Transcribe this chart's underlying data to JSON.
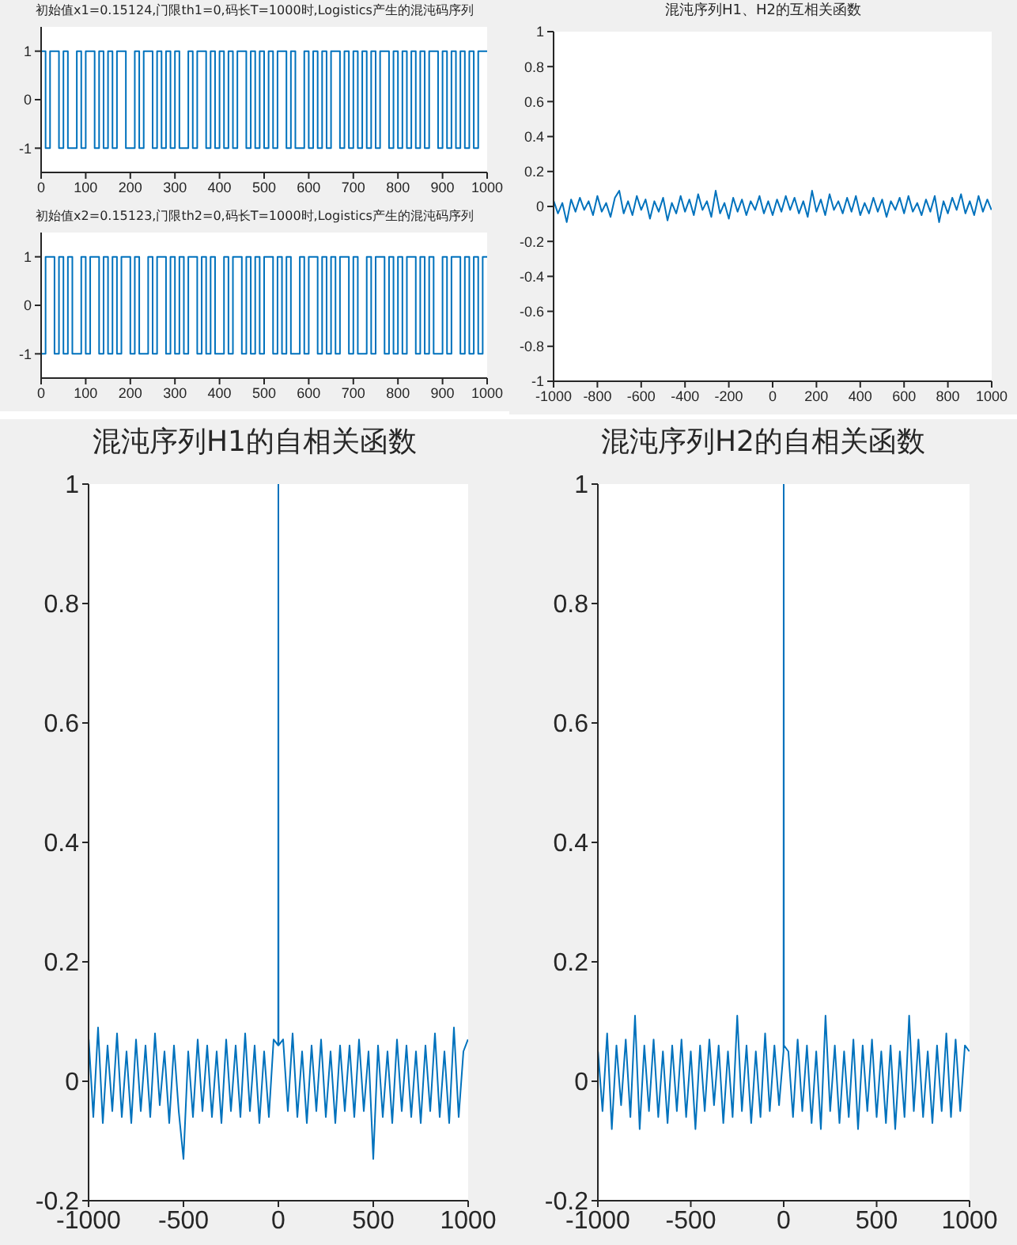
{
  "chart_data": [
    {
      "type": "step",
      "title": "初始值x1=0.15124,门限th1=0,码长T=1000时,Logistics产生的混沌码序列",
      "xlim": [
        0,
        1000
      ],
      "xticks": [
        0,
        100,
        200,
        300,
        400,
        500,
        600,
        700,
        800,
        900,
        1000
      ],
      "ylim": [
        -1.5,
        1.5
      ],
      "yticks": [
        -1,
        0,
        1
      ],
      "series": [
        {
          "color": "#0072bd",
          "x": [
            0,
            10,
            20,
            30,
            40,
            50,
            60,
            70,
            80,
            90,
            100,
            110,
            120,
            130,
            140,
            150,
            160,
            170,
            180,
            190,
            200,
            210,
            220,
            230,
            240,
            250,
            260,
            270,
            280,
            290,
            300,
            310,
            320,
            330,
            340,
            350,
            360,
            370,
            380,
            390,
            400,
            410,
            420,
            430,
            440,
            450,
            460,
            470,
            480,
            490,
            500,
            510,
            520,
            530,
            540,
            550,
            560,
            570,
            580,
            590,
            600,
            610,
            620,
            630,
            640,
            650,
            660,
            670,
            680,
            690,
            700,
            710,
            720,
            730,
            740,
            750,
            760,
            770,
            780,
            790,
            800,
            810,
            820,
            830,
            840,
            850,
            860,
            870,
            880,
            890,
            900,
            910,
            920,
            930,
            940,
            950,
            960,
            970,
            980,
            990,
            1000
          ],
          "values": [
            1,
            -1,
            1,
            1,
            -1,
            1,
            -1,
            -1,
            1,
            -1,
            1,
            1,
            -1,
            1,
            -1,
            1,
            -1,
            1,
            1,
            -1,
            -1,
            1,
            -1,
            1,
            1,
            -1,
            1,
            -1,
            1,
            -1,
            1,
            -1,
            -1,
            1,
            -1,
            1,
            1,
            -1,
            1,
            -1,
            1,
            -1,
            1,
            -1,
            1,
            1,
            -1,
            1,
            -1,
            1,
            -1,
            1,
            -1,
            1,
            1,
            -1,
            1,
            -1,
            -1,
            1,
            -1,
            1,
            -1,
            1,
            -1,
            1,
            1,
            -1,
            1,
            -1,
            1,
            -1,
            1,
            -1,
            1,
            -1,
            1,
            1,
            -1,
            1,
            -1,
            1,
            -1,
            1,
            -1,
            1,
            -1,
            1,
            1,
            -1,
            1,
            -1,
            1,
            -1,
            1,
            -1,
            1,
            -1,
            1,
            1,
            1
          ]
        }
      ]
    },
    {
      "type": "step",
      "title": "初始值x2=0.15123,门限th2=0,码长T=1000时,Logistics产生的混沌码序列",
      "xlim": [
        0,
        1000
      ],
      "xticks": [
        0,
        100,
        200,
        300,
        400,
        500,
        600,
        700,
        800,
        900,
        1000
      ],
      "ylim": [
        -1.5,
        1.5
      ],
      "yticks": [
        -1,
        0,
        1
      ],
      "series": [
        {
          "color": "#0072bd",
          "x": [
            0,
            10,
            20,
            30,
            40,
            50,
            60,
            70,
            80,
            90,
            100,
            110,
            120,
            130,
            140,
            150,
            160,
            170,
            180,
            190,
            200,
            210,
            220,
            230,
            240,
            250,
            260,
            270,
            280,
            290,
            300,
            310,
            320,
            330,
            340,
            350,
            360,
            370,
            380,
            390,
            400,
            410,
            420,
            430,
            440,
            450,
            460,
            470,
            480,
            490,
            500,
            510,
            520,
            530,
            540,
            550,
            560,
            570,
            580,
            590,
            600,
            610,
            620,
            630,
            640,
            650,
            660,
            670,
            680,
            690,
            700,
            710,
            720,
            730,
            740,
            750,
            760,
            770,
            780,
            790,
            800,
            810,
            820,
            830,
            840,
            850,
            860,
            870,
            880,
            890,
            900,
            910,
            920,
            930,
            940,
            950,
            960,
            970,
            980,
            990,
            1000
          ],
          "values": [
            -1,
            1,
            1,
            -1,
            1,
            -1,
            1,
            -1,
            -1,
            1,
            -1,
            1,
            1,
            -1,
            1,
            -1,
            1,
            -1,
            1,
            1,
            -1,
            1,
            -1,
            -1,
            1,
            -1,
            1,
            1,
            -1,
            1,
            -1,
            1,
            -1,
            1,
            1,
            -1,
            1,
            -1,
            1,
            -1,
            -1,
            1,
            -1,
            1,
            1,
            -1,
            1,
            -1,
            1,
            -1,
            1,
            1,
            -1,
            1,
            -1,
            1,
            -1,
            -1,
            1,
            -1,
            1,
            1,
            -1,
            1,
            -1,
            1,
            -1,
            1,
            1,
            -1,
            1,
            -1,
            -1,
            1,
            -1,
            1,
            1,
            -1,
            1,
            -1,
            1,
            -1,
            1,
            1,
            -1,
            1,
            -1,
            1,
            -1,
            -1,
            1,
            -1,
            1,
            1,
            -1,
            1,
            -1,
            1,
            -1,
            1,
            1
          ]
        }
      ]
    },
    {
      "type": "line",
      "title": "混沌序列H1、H2的互相关函数",
      "xlim": [
        -1000,
        1000
      ],
      "xticks": [
        -1000,
        -800,
        -600,
        -400,
        -200,
        0,
        200,
        400,
        600,
        800,
        1000
      ],
      "ylim": [
        -1,
        1
      ],
      "yticks": [
        -1,
        -0.8,
        -0.6,
        -0.4,
        -0.2,
        0,
        0.2,
        0.4,
        0.6,
        0.8,
        1
      ],
      "series": [
        {
          "color": "#0072bd",
          "x": [
            -999,
            -980,
            -960,
            -940,
            -920,
            -900,
            -880,
            -860,
            -840,
            -820,
            -800,
            -780,
            -760,
            -740,
            -720,
            -700,
            -680,
            -660,
            -640,
            -620,
            -600,
            -580,
            -560,
            -540,
            -520,
            -500,
            -480,
            -460,
            -440,
            -420,
            -400,
            -380,
            -360,
            -340,
            -320,
            -300,
            -280,
            -260,
            -240,
            -220,
            -200,
            -180,
            -160,
            -140,
            -120,
            -100,
            -80,
            -60,
            -40,
            -20,
            0,
            20,
            40,
            60,
            80,
            100,
            120,
            140,
            160,
            180,
            200,
            220,
            240,
            260,
            280,
            300,
            320,
            340,
            360,
            380,
            400,
            420,
            440,
            460,
            480,
            500,
            520,
            540,
            560,
            580,
            600,
            620,
            640,
            660,
            680,
            700,
            720,
            740,
            760,
            780,
            800,
            820,
            840,
            860,
            880,
            900,
            920,
            940,
            960,
            980,
            999
          ],
          "values": [
            0.03,
            -0.04,
            0.02,
            -0.09,
            0.04,
            -0.03,
            0.05,
            -0.02,
            0.03,
            -0.05,
            0.06,
            -0.03,
            0.02,
            -0.06,
            0.05,
            0.09,
            -0.04,
            0.03,
            -0.05,
            0.06,
            -0.02,
            0.04,
            -0.07,
            0.03,
            -0.03,
            0.05,
            -0.08,
            0.02,
            -0.04,
            0.06,
            -0.03,
            0.04,
            -0.05,
            0.07,
            -0.02,
            0.03,
            -0.06,
            0.09,
            -0.04,
            0.02,
            -0.07,
            0.05,
            -0.03,
            0.04,
            -0.05,
            0.03,
            -0.02,
            0.06,
            -0.04,
            0.03,
            -0.05,
            0.04,
            -0.03,
            0.06,
            -0.02,
            0.05,
            -0.04,
            0.03,
            -0.06,
            0.09,
            -0.03,
            0.04,
            -0.05,
            0.07,
            -0.02,
            0.03,
            -0.04,
            0.05,
            -0.03,
            0.06,
            -0.05,
            0.02,
            -0.04,
            0.05,
            -0.03,
            0.04,
            -0.06,
            0.03,
            -0.02,
            0.05,
            -0.04,
            0.06,
            -0.03,
            0.02,
            -0.05,
            0.04,
            -0.03,
            0.06,
            -0.09,
            0.03,
            -0.04,
            0.05,
            -0.02,
            0.07,
            -0.04,
            0.03,
            -0.05,
            0.06,
            -0.03,
            0.04,
            -0.02
          ]
        }
      ]
    },
    {
      "type": "line",
      "title": "混沌序列H1的自相关函数",
      "xlim": [
        -1000,
        1000
      ],
      "xticks": [
        -1000,
        -500,
        0,
        500,
        1000
      ],
      "ylim": [
        -0.2,
        1
      ],
      "yticks": [
        -0.2,
        0,
        0.2,
        0.4,
        0.6,
        0.8,
        1
      ],
      "series": [
        {
          "color": "#0072bd",
          "x": [
            -999,
            -975,
            -950,
            -925,
            -900,
            -875,
            -850,
            -825,
            -800,
            -775,
            -750,
            -725,
            -700,
            -675,
            -650,
            -625,
            -600,
            -575,
            -550,
            -525,
            -500,
            -475,
            -450,
            -425,
            -400,
            -375,
            -350,
            -325,
            -300,
            -275,
            -250,
            -225,
            -200,
            -175,
            -150,
            -125,
            -100,
            -75,
            -50,
            -25,
            -1,
            0,
            1,
            25,
            50,
            75,
            100,
            125,
            150,
            175,
            200,
            225,
            250,
            275,
            300,
            325,
            350,
            375,
            400,
            425,
            450,
            475,
            500,
            525,
            550,
            575,
            600,
            625,
            650,
            675,
            700,
            725,
            750,
            775,
            800,
            825,
            850,
            875,
            900,
            925,
            950,
            975,
            999
          ],
          "values": [
            0.07,
            -0.06,
            0.09,
            -0.07,
            0.06,
            -0.05,
            0.08,
            -0.06,
            0.05,
            -0.07,
            0.07,
            -0.05,
            0.06,
            -0.06,
            0.08,
            -0.04,
            0.05,
            -0.07,
            0.06,
            -0.05,
            -0.13,
            0.05,
            -0.06,
            0.07,
            -0.05,
            0.06,
            -0.06,
            0.05,
            -0.07,
            0.07,
            -0.05,
            0.06,
            -0.06,
            0.08,
            -0.05,
            0.06,
            -0.07,
            0.05,
            -0.06,
            0.07,
            0.06,
            1,
            0.06,
            0.07,
            -0.05,
            0.08,
            -0.06,
            0.05,
            -0.07,
            0.06,
            -0.05,
            0.07,
            -0.06,
            0.05,
            -0.07,
            0.06,
            -0.05,
            0.06,
            -0.06,
            0.07,
            -0.05,
            0.05,
            -0.13,
            0.06,
            -0.06,
            0.05,
            -0.07,
            0.07,
            -0.05,
            0.06,
            -0.06,
            0.05,
            -0.07,
            0.06,
            -0.05,
            0.08,
            -0.06,
            0.05,
            -0.07,
            0.09,
            -0.06,
            0.05,
            0.07
          ]
        }
      ]
    },
    {
      "type": "line",
      "title": "混沌序列H2的自相关函数",
      "xlim": [
        -1000,
        1000
      ],
      "xticks": [
        -1000,
        -500,
        0,
        500,
        1000
      ],
      "ylim": [
        -0.2,
        1
      ],
      "yticks": [
        -0.2,
        0,
        0.2,
        0.4,
        0.6,
        0.8,
        1
      ],
      "series": [
        {
          "color": "#0072bd",
          "x": [
            -999,
            -975,
            -950,
            -925,
            -900,
            -875,
            -850,
            -825,
            -800,
            -775,
            -750,
            -725,
            -700,
            -675,
            -650,
            -625,
            -600,
            -575,
            -550,
            -525,
            -500,
            -475,
            -450,
            -425,
            -400,
            -375,
            -350,
            -325,
            -300,
            -275,
            -250,
            -225,
            -200,
            -175,
            -150,
            -125,
            -100,
            -75,
            -50,
            -25,
            -1,
            0,
            1,
            25,
            50,
            75,
            100,
            125,
            150,
            175,
            200,
            225,
            250,
            275,
            300,
            325,
            350,
            375,
            400,
            425,
            450,
            475,
            500,
            525,
            550,
            575,
            600,
            625,
            650,
            675,
            700,
            725,
            750,
            775,
            800,
            825,
            850,
            875,
            900,
            925,
            950,
            975,
            999
          ],
          "values": [
            0.05,
            -0.05,
            0.08,
            -0.08,
            0.06,
            -0.04,
            0.07,
            -0.06,
            0.11,
            -0.08,
            0.06,
            -0.05,
            0.07,
            -0.06,
            0.05,
            -0.07,
            0.06,
            -0.05,
            0.07,
            -0.06,
            0.05,
            -0.08,
            0.06,
            -0.05,
            0.07,
            -0.04,
            0.06,
            -0.07,
            0.05,
            -0.06,
            0.11,
            -0.05,
            0.06,
            -0.07,
            0.05,
            -0.06,
            0.08,
            -0.05,
            0.06,
            -0.04,
            0.05,
            1,
            0.06,
            0.05,
            -0.06,
            0.07,
            -0.05,
            0.06,
            -0.07,
            0.05,
            -0.08,
            0.11,
            -0.05,
            0.06,
            -0.07,
            0.05,
            -0.06,
            0.07,
            -0.08,
            0.06,
            -0.05,
            0.07,
            -0.06,
            0.05,
            -0.07,
            0.06,
            -0.08,
            0.05,
            -0.06,
            0.11,
            -0.05,
            0.07,
            -0.06,
            0.05,
            -0.07,
            0.06,
            -0.05,
            0.08,
            -0.06,
            0.07,
            -0.05,
            0.06,
            0.05
          ]
        }
      ]
    }
  ]
}
